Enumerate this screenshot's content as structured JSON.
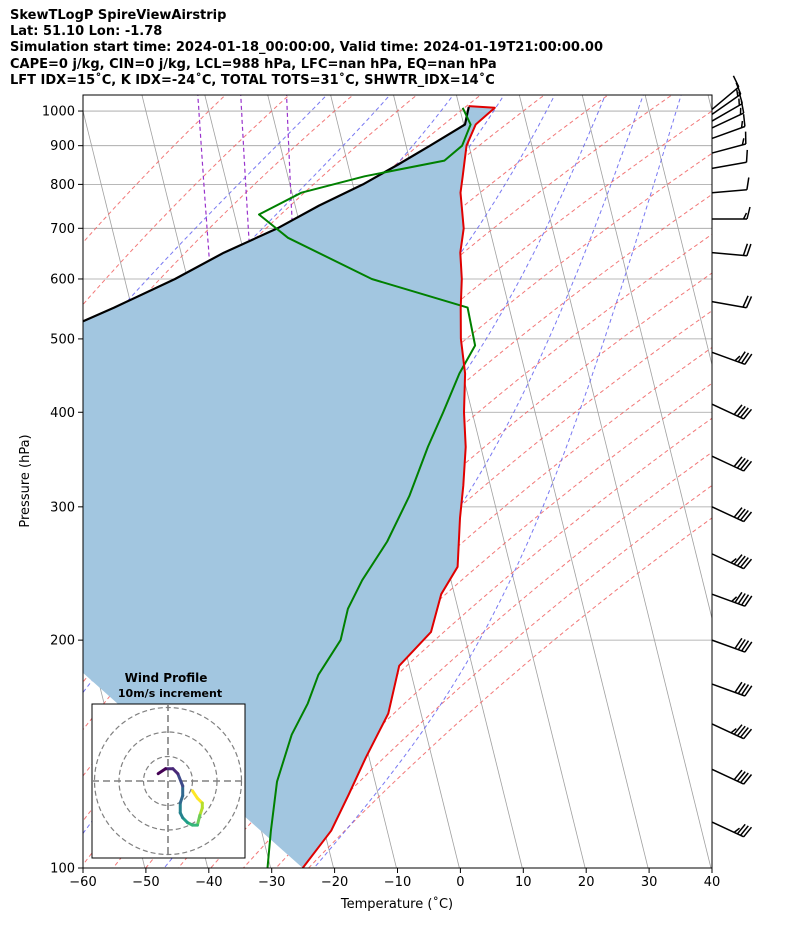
{
  "header": {
    "line1": "SkewTLogP SpireViewAirstrip",
    "line2": "Lat: 51.10   Lon: -1.78",
    "line3": "Simulation start time: 2024-01-18_00:00:00, Valid time: 2024-01-19T21:00:00.00",
    "line4": "CAPE=0 j/kg, CIN=0 j/kg, LCL=988 hPa, LFC=nan hPa, EQ=nan hPa",
    "line5": "LFT IDX=15˚C, K IDX=-24˚C, TOTAL TOTS=31˚C, SHWTR_IDX=14˚C"
  },
  "colors": {
    "temperature": "#e00000",
    "dewpoint": "#008000",
    "parcel": "#000000",
    "cape_fill": "#a2c6e0",
    "dry_adiabat": "#f06060",
    "moist_adiabat": "#6060f0",
    "mixing_ratio": "#9933cc",
    "isotherm": "#a0a0a0"
  },
  "chart_data": {
    "type": "line",
    "subtype": "skew-T log-p",
    "xlabel": "Temperature (˚C)",
    "ylabel": "Pressure (hPa)",
    "xlim": [
      -60,
      40
    ],
    "ylim": [
      1050,
      100
    ],
    "y_scale": "log",
    "grid": true,
    "x_ticks": [
      "−60",
      "−50",
      "−40",
      "−30",
      "−20",
      "−10",
      "0",
      "10",
      "20",
      "30",
      "40"
    ],
    "y_ticks": [
      "1000",
      "900",
      "800",
      "700",
      "600",
      "500",
      "400",
      "300",
      "200",
      "100"
    ],
    "x_tick_values": [
      -60,
      -50,
      -40,
      -30,
      -20,
      -10,
      0,
      10,
      20,
      30,
      40
    ],
    "y_tick_values": [
      1000,
      900,
      800,
      700,
      600,
      500,
      400,
      300,
      200,
      100
    ],
    "series": [
      {
        "key": "temperature",
        "x": [
          1.5,
          5.6,
          1.9,
          -0.4,
          -2.2,
          -3.2,
          -4.1,
          -5.6,
          -6.4,
          -7.7,
          -8.9,
          -9.6,
          -11.3,
          -12.4,
          -14.3,
          -16.1,
          -18.4,
          -22.1,
          -25.2,
          -31.6,
          -35.2,
          -40.5,
          -44.7,
          -48.9,
          -54.9
        ],
        "y": [
          1015,
          1010,
          960,
          900,
          820,
          780,
          700,
          650,
          600,
          550,
          500,
          450,
          400,
          360,
          320,
          290,
          250,
          230,
          205,
          185,
          160,
          140,
          125,
          112,
          100
        ]
      },
      {
        "key": "dewpoint",
        "x": [
          0.5,
          1.1,
          -1.1,
          -4.5,
          -17.8,
          -28.5,
          -36.1,
          -32.4,
          -20.7,
          -6.6,
          -6.9,
          -10.5,
          -14.6,
          -18.4,
          -23.3,
          -28.6,
          -34.1,
          -37.5,
          -39.9,
          -44.8,
          -47.6,
          -51.4,
          -55.6,
          -58.5,
          -60.5
        ],
        "y": [
          1010,
          960,
          900,
          860,
          820,
          780,
          730,
          680,
          600,
          550,
          490,
          450,
          400,
          360,
          310,
          270,
          240,
          220,
          200,
          180,
          165,
          150,
          130,
          112,
          100
        ]
      },
      {
        "key": "parcel",
        "x": [
          1.5,
          0.9,
          0.2,
          -6.2,
          -12.0,
          -18.4,
          -26.2,
          -33.7,
          -43.2,
          -52.0,
          -62.8,
          -75.3,
          -91.3,
          -118.5
        ],
        "y": [
          1013,
          988,
          960,
          900,
          850,
          800,
          750,
          700,
          650,
          600,
          550,
          500,
          450,
          400
        ]
      }
    ],
    "wind_barbs": {
      "pressures": [
        1005,
        990,
        970,
        950,
        920,
        880,
        840,
        780,
        720,
        650,
        560,
        480,
        410,
        350,
        300,
        260,
        230,
        200,
        175,
        155,
        135,
        115
      ],
      "speed_kt": [
        10,
        15,
        15,
        15,
        15,
        15,
        10,
        10,
        15,
        20,
        20,
        35,
        40,
        40,
        40,
        45,
        45,
        40,
        40,
        45,
        40,
        35
      ],
      "direction_deg": [
        230,
        235,
        240,
        245,
        250,
        255,
        260,
        265,
        270,
        275,
        280,
        290,
        295,
        295,
        295,
        295,
        290,
        290,
        290,
        295,
        295,
        295
      ]
    },
    "hodograph": {
      "title": "Wind Profile",
      "subtitle": "10m/s increment",
      "u": [
        10,
        12,
        14,
        14,
        13,
        12,
        10,
        8,
        6,
        5,
        5,
        6,
        6,
        4,
        2,
        -1,
        -4
      ],
      "v": [
        -4,
        -7,
        -9,
        -11,
        -14,
        -18,
        -18,
        -17,
        -15,
        -13,
        -9,
        -6,
        -2,
        3,
        5,
        5,
        3
      ]
    }
  }
}
